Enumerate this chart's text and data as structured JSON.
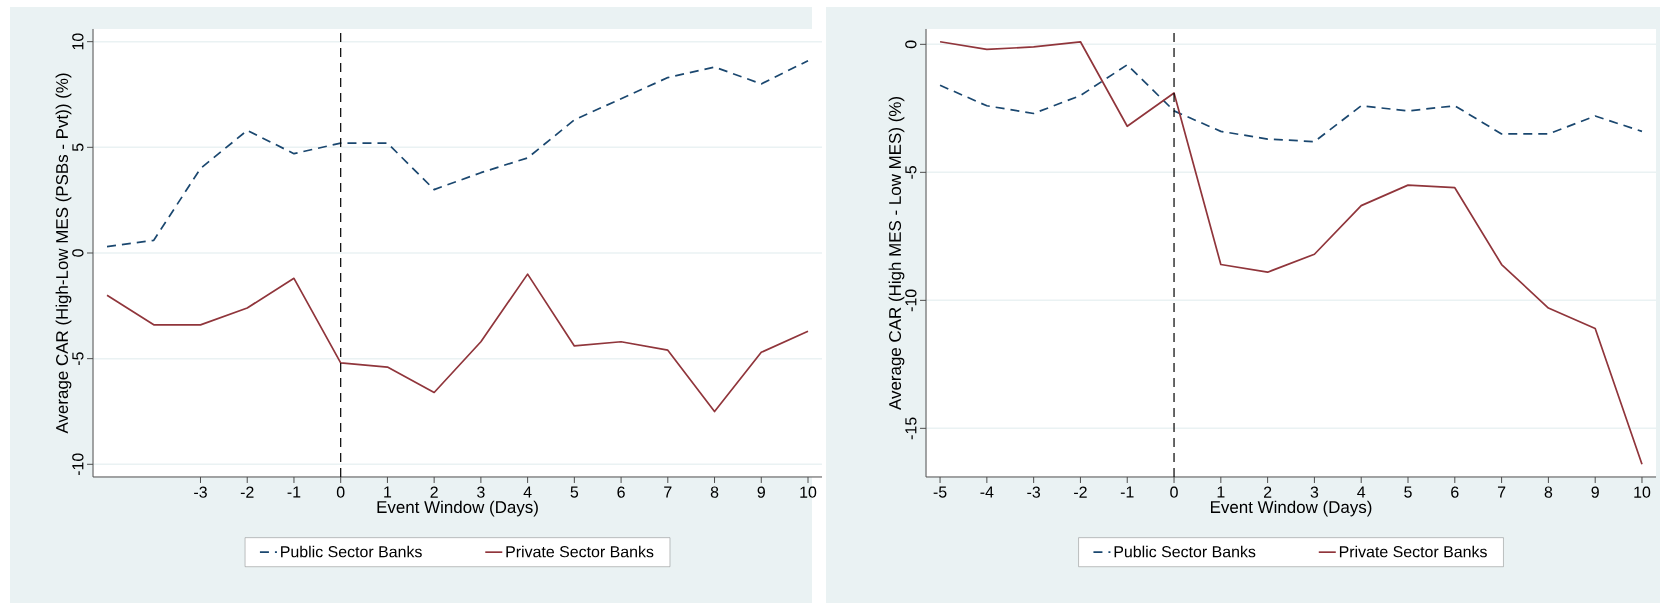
{
  "chart_data": [
    {
      "type": "line",
      "xlabel": "Event Window (Days)",
      "ylabel": "Average CAR (High-Low MES (PSBs - Pvt)) (%)",
      "x": [
        -5,
        -4,
        -3,
        -2,
        -1,
        0,
        1,
        2,
        3,
        4,
        5,
        6,
        7,
        8,
        9,
        10
      ],
      "series": [
        {
          "name": "Public Sector Banks",
          "color": "#1a476f",
          "line_style": "dashed",
          "values": [
            0.3,
            0.6,
            4.0,
            5.8,
            4.7,
            5.2,
            5.2,
            3.0,
            3.8,
            4.5,
            6.3,
            7.3,
            8.3,
            8.8,
            8.0,
            9.1
          ]
        },
        {
          "name": "Private Sector Banks",
          "color": "#90353b",
          "line_style": "solid",
          "values": [
            -2.0,
            -3.4,
            -3.4,
            -2.6,
            -1.2,
            -5.2,
            -5.4,
            -6.6,
            -4.2,
            -1.0,
            -4.4,
            -4.2,
            -4.6,
            -7.5,
            -4.7,
            -3.7
          ]
        }
      ],
      "xlim": [
        -5.3,
        10.3
      ],
      "ylim": [
        -10.6,
        10.6
      ],
      "xticks": [
        -3,
        -2,
        -1,
        0,
        1,
        2,
        3,
        4,
        5,
        6,
        7,
        8,
        9,
        10
      ],
      "yticks": [
        -10,
        -5,
        0,
        5,
        10
      ],
      "ref_lines": [
        {
          "axis": "x",
          "value": 0,
          "color": "#000000",
          "line_style": "dashed"
        }
      ],
      "grid": "y",
      "legend": "bottom"
    },
    {
      "type": "line",
      "xlabel": "Event Window (Days)",
      "ylabel": "Average CAR (High MES - Low MES) (%)",
      "x": [
        -5,
        -4,
        -3,
        -2,
        -1,
        0,
        1,
        2,
        3,
        4,
        5,
        6,
        7,
        8,
        9,
        10
      ],
      "series": [
        {
          "name": "Public Sector Banks",
          "color": "#1a476f",
          "line_style": "dashed",
          "values": [
            -1.6,
            -2.4,
            -2.7,
            -2.0,
            -0.8,
            -2.6,
            -3.4,
            -3.7,
            -3.8,
            -2.4,
            -2.6,
            -2.4,
            -3.5,
            -3.5,
            -2.8,
            -3.4
          ]
        },
        {
          "name": "Private Sector Banks",
          "color": "#90353b",
          "line_style": "solid",
          "values": [
            0.1,
            -0.2,
            -0.1,
            0.1,
            -3.2,
            -1.9,
            -8.6,
            -8.9,
            -8.2,
            -6.3,
            -5.5,
            -5.6,
            -8.6,
            -10.3,
            -11.1,
            -16.4
          ]
        }
      ],
      "xlim": [
        -5.3,
        10.3
      ],
      "ylim": [
        -16.9,
        0.6
      ],
      "xticks": [
        -5,
        -4,
        -3,
        -2,
        -1,
        0,
        1,
        2,
        3,
        4,
        5,
        6,
        7,
        8,
        9,
        10
      ],
      "yticks": [
        -15,
        -10,
        -5,
        0
      ],
      "ref_lines": [
        {
          "axis": "x",
          "value": 0,
          "color": "#000000",
          "line_style": "dashed"
        }
      ],
      "grid": "y",
      "legend": "bottom"
    }
  ]
}
